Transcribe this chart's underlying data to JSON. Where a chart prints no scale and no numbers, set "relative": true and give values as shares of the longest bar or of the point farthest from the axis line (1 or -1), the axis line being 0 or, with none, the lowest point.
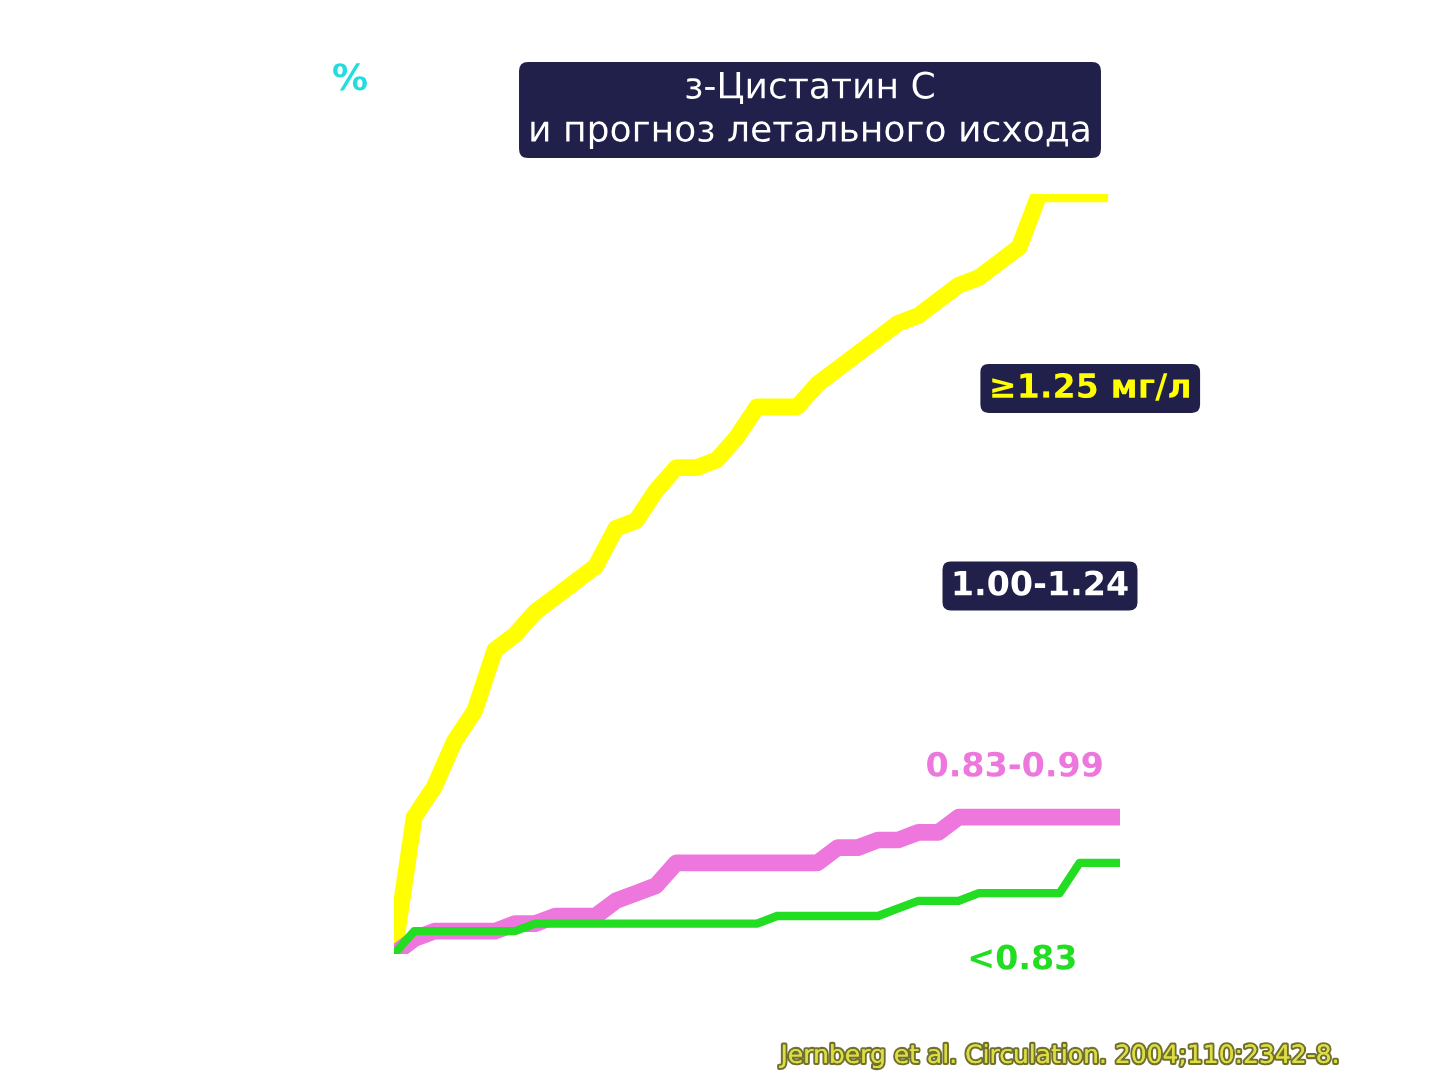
{
  "chart_data": {
    "type": "line",
    "relative": true,
    "title": "з-Цистатин С\nи прогноз летального исхода",
    "ylabel": "%",
    "annotations": [
      "1.00-1.24",
      "Jernberg et al. Circulation. 2004;110:2342-8."
    ],
    "categories": [
      null,
      null,
      null,
      null,
      null,
      null,
      null,
      null,
      null,
      null,
      null,
      null,
      null,
      null,
      null,
      null,
      null,
      null,
      null,
      null,
      null,
      null,
      null,
      null,
      null,
      null,
      null,
      null,
      null,
      null,
      null,
      null,
      null,
      null,
      null,
      null,
      null
    ],
    "series": [
      {
        "name": "≥1.25 мг/л",
        "color": "#ffff00",
        "values": [
          0,
          0.18,
          0.22,
          0.28,
          0.32,
          0.4,
          0.42,
          0.45,
          0.47,
          0.49,
          0.51,
          0.56,
          0.57,
          0.61,
          0.64,
          0.64,
          0.65,
          0.68,
          0.72,
          0.72,
          0.72,
          0.75,
          0.77,
          0.79,
          0.81,
          0.83,
          0.84,
          0.86,
          0.88,
          0.89,
          0.91,
          0.93,
          1,
          1,
          1,
          1,
          null
        ]
      },
      {
        "name": "0.83-0.99",
        "color": "#ee77dd",
        "values": [
          0,
          0.02,
          0.03,
          0.03,
          0.03,
          0.03,
          0.04,
          0.04,
          0.05,
          0.05,
          0.05,
          0.07,
          0.08,
          0.09,
          0.12,
          0.12,
          0.12,
          0.12,
          0.12,
          0.12,
          0.12,
          0.12,
          0.14,
          0.14,
          0.15,
          0.15,
          0.16,
          0.16,
          0.18,
          0.18,
          0.18,
          0.18,
          0.18,
          0.18,
          0.18,
          0.18,
          0.18
        ]
      },
      {
        "name": "<0.83",
        "color": "#22dd22",
        "values": [
          0,
          0.03,
          0.03,
          0.03,
          0.03,
          0.03,
          0.03,
          0.04,
          0.04,
          0.04,
          0.04,
          0.04,
          0.04,
          0.04,
          0.04,
          0.04,
          0.04,
          0.04,
          0.04,
          0.05,
          0.05,
          0.05,
          0.05,
          0.05,
          0.05,
          0.06,
          0.07,
          0.07,
          0.07,
          0.08,
          0.08,
          0.08,
          0.08,
          0.08,
          0.12,
          0.12,
          0.12
        ]
      }
    ],
    "legend": false
  }
}
